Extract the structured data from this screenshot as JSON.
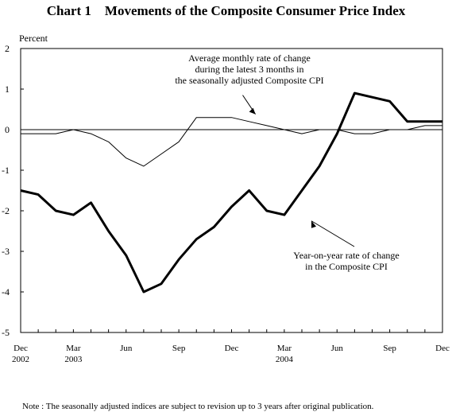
{
  "title": "Chart 1    Movements of the Composite Consumer Price Index",
  "note": "Note : The seasonally adjusted indices are subject to revision up to 3 years after original publication.",
  "chart_data": {
    "type": "line",
    "ylabel": "Percent",
    "ylim": [
      -5,
      2
    ],
    "yticks": [
      "2",
      "1",
      "0",
      "-1",
      "-2",
      "-3",
      "-4",
      "-5"
    ],
    "x": [
      "2002-12",
      "2003-01",
      "2003-02",
      "2003-03",
      "2003-04",
      "2003-05",
      "2003-06",
      "2003-07",
      "2003-08",
      "2003-09",
      "2003-10",
      "2003-11",
      "2003-12",
      "2004-01",
      "2004-02",
      "2004-03",
      "2004-04",
      "2004-05",
      "2004-06",
      "2004-07",
      "2004-08",
      "2004-09",
      "2004-10",
      "2004-11",
      "2004-12"
    ],
    "xtick_labels": [
      {
        "month": "Dec",
        "year": "2002"
      },
      {
        "month": "Mar",
        "year": "2003"
      },
      {
        "month": "Jun",
        "year": ""
      },
      {
        "month": "Sep",
        "year": ""
      },
      {
        "month": "Dec",
        "year": ""
      },
      {
        "month": "Mar",
        "year": "2004"
      },
      {
        "month": "Jun",
        "year": ""
      },
      {
        "month": "Sep",
        "year": ""
      },
      {
        "month": "Dec",
        "year": ""
      }
    ],
    "grid": false,
    "series": [
      {
        "name": "Average monthly rate of change during the latest 3 months in the seasonally adjusted Composite CPI",
        "label_lines": [
          "Average monthly rate of change",
          "during the latest 3 months in",
          "the seasonally adjusted Composite CPI"
        ],
        "color": "#000000",
        "style": "thin",
        "values": [
          -0.1,
          -0.1,
          -0.1,
          0.0,
          -0.1,
          -0.3,
          -0.7,
          -0.9,
          -0.6,
          -0.3,
          0.3,
          0.3,
          0.3,
          0.2,
          0.1,
          0.0,
          -0.1,
          0.0,
          0.0,
          -0.1,
          -0.1,
          0.0,
          0.0,
          0.1,
          0.1
        ]
      },
      {
        "name": "Year-on-year rate of change in the Composite CPI",
        "label_lines": [
          "Year-on-year rate of change",
          "in the Composite CPI"
        ],
        "color": "#000000",
        "style": "thick",
        "values": [
          -1.5,
          -1.6,
          -2.0,
          -2.1,
          -1.8,
          -2.5,
          -3.1,
          -4.0,
          -3.8,
          -3.2,
          -2.7,
          -2.4,
          -1.9,
          -1.5,
          -2.0,
          -2.1,
          -1.5,
          -0.9,
          -0.1,
          0.9,
          0.8,
          0.7,
          0.2,
          0.2,
          0.2
        ]
      }
    ]
  }
}
